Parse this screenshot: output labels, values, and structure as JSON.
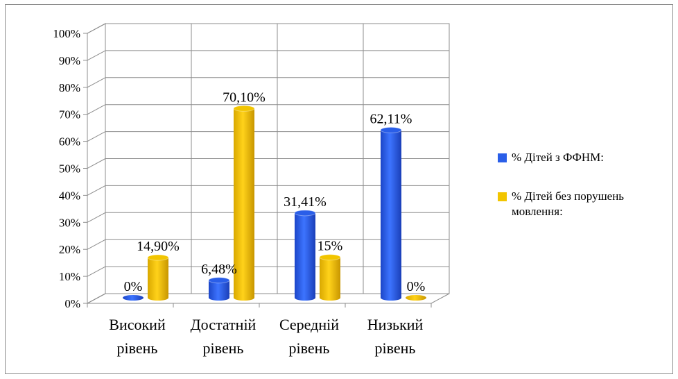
{
  "chart_data": {
    "type": "bar",
    "title": "",
    "xlabel": "",
    "ylabel": "",
    "ylim": [
      0,
      100
    ],
    "yticks": [
      "0%",
      "10%",
      "20%",
      "30%",
      "40%",
      "50%",
      "60%",
      "70%",
      "80%",
      "90%",
      "100%"
    ],
    "categories": [
      [
        "Високий",
        "рівень"
      ],
      [
        "Достатній",
        "рівень"
      ],
      [
        "Середній",
        "рівень"
      ],
      [
        "Низький",
        "рівень"
      ]
    ],
    "series": [
      {
        "name": "% Дітей з ФФНМ:",
        "color": "#2a5ee8",
        "values": [
          0,
          6.48,
          31.41,
          62.11
        ],
        "labels": [
          "0%",
          "6,48%",
          "31,41%",
          "62,11%"
        ]
      },
      {
        "name": "% Дітей без порушень мовлення:",
        "color": "#f2c500",
        "values": [
          14.9,
          70.1,
          15,
          0
        ],
        "labels": [
          "14,90%",
          "70,10%",
          "15%",
          "0%"
        ]
      }
    ],
    "grid": true,
    "legend_position": "right"
  },
  "legend": {
    "items": [
      {
        "lines": [
          "% Дітей з ФФНМ:"
        ],
        "color": "#2a5ee8"
      },
      {
        "lines": [
          "% Дітей без порушень",
          "мовлення:"
        ],
        "color": "#f2c500"
      }
    ]
  }
}
